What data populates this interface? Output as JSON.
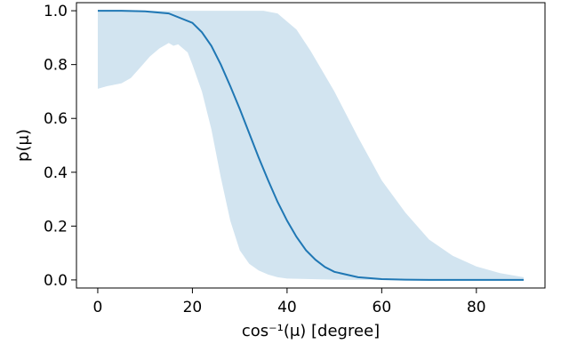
{
  "chart_data": {
    "type": "line",
    "title": "",
    "xlabel": "cos⁻¹(μ) [degree]",
    "ylabel": "p(μ)",
    "xlim": [
      -4.5,
      94.5
    ],
    "ylim": [
      -0.03,
      1.03
    ],
    "xticks": [
      0,
      20,
      40,
      60,
      80
    ],
    "yticks": [
      0.0,
      0.2,
      0.4,
      0.6,
      0.8,
      1.0
    ],
    "xtick_labels": [
      "0",
      "20",
      "40",
      "60",
      "80"
    ],
    "ytick_labels": [
      "0.0",
      "0.2",
      "0.4",
      "0.6",
      "0.8",
      "1.0"
    ],
    "grid": false,
    "colors": {
      "line": "#1f77b4",
      "band": "#1f77b4",
      "band_opacity": 0.2
    },
    "series": [
      {
        "kind": "line",
        "x": [
          0,
          5,
          10,
          15,
          20,
          22,
          24,
          26,
          28,
          30,
          32,
          34,
          36,
          38,
          40,
          42,
          44,
          46,
          48,
          50,
          55,
          60,
          65,
          70,
          75,
          80,
          85,
          90
        ],
        "y": [
          1.0,
          1.0,
          0.998,
          0.99,
          0.955,
          0.92,
          0.87,
          0.8,
          0.72,
          0.635,
          0.545,
          0.455,
          0.37,
          0.29,
          0.22,
          0.16,
          0.11,
          0.075,
          0.048,
          0.03,
          0.01,
          0.003,
          0.001,
          0.0,
          0.0,
          0.0,
          0.0,
          0.0
        ]
      },
      {
        "kind": "band",
        "x": [
          0,
          2,
          5,
          7,
          9,
          11,
          13,
          15,
          16,
          17,
          18,
          19,
          20,
          22,
          24,
          26,
          28,
          30,
          32,
          34,
          36,
          38,
          40,
          45,
          50,
          55,
          60,
          65,
          70,
          75,
          80,
          85,
          90
        ],
        "lower": [
          0.71,
          0.72,
          0.73,
          0.75,
          0.79,
          0.83,
          0.86,
          0.88,
          0.87,
          0.875,
          0.86,
          0.845,
          0.8,
          0.7,
          0.56,
          0.38,
          0.22,
          0.11,
          0.06,
          0.035,
          0.02,
          0.01,
          0.005,
          0.003,
          0.001,
          0.0,
          0.0,
          0.0,
          0.0,
          0.0,
          0.0,
          0.0,
          0.0
        ],
        "x_upper": [
          0,
          5,
          10,
          15,
          20,
          25,
          30,
          35,
          38,
          40,
          42,
          45,
          50,
          55,
          60,
          65,
          70,
          75,
          80,
          85,
          90
        ],
        "upper": [
          1.0,
          1.0,
          1.0,
          1.0,
          1.0,
          1.0,
          1.0,
          1.0,
          0.99,
          0.96,
          0.93,
          0.85,
          0.7,
          0.53,
          0.37,
          0.25,
          0.15,
          0.09,
          0.05,
          0.025,
          0.01
        ]
      }
    ]
  }
}
